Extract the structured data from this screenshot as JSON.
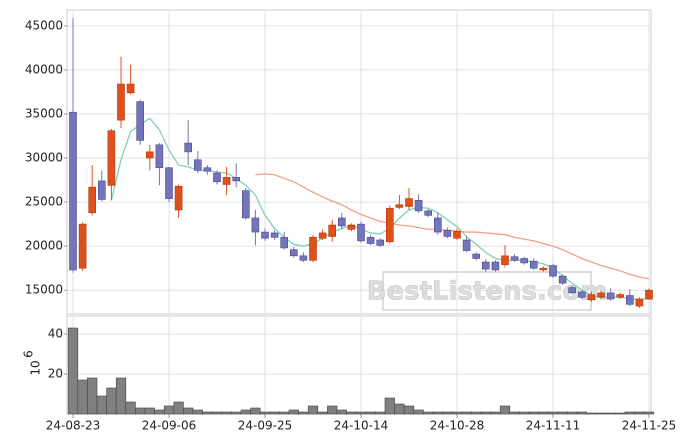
{
  "chart_data": [
    {
      "type": "candlestick",
      "open": [
        35200,
        17500,
        23800,
        27400,
        26900,
        34300,
        37400,
        36400,
        30000,
        31500,
        28900,
        24100,
        31700,
        29800,
        28900,
        28300,
        27000,
        27800,
        26300,
        23200,
        21600,
        21500,
        21000,
        19600,
        18900,
        18400,
        20900,
        21100,
        23200,
        21900,
        22500,
        21000,
        20700,
        20500,
        24400,
        24500,
        25200,
        24000,
        23200,
        21800,
        20900,
        20700,
        19100,
        18200,
        18200,
        17900,
        18800,
        18600,
        18300,
        17300,
        17800,
        16600,
        15300,
        14800,
        13900,
        14200,
        14700,
        14200,
        14400,
        13200,
        14000
      ],
      "high": [
        45900,
        22700,
        29200,
        28600,
        33300,
        41500,
        40600,
        36600,
        31500,
        31700,
        29000,
        27000,
        34300,
        30800,
        29200,
        28600,
        29000,
        29400,
        26600,
        24100,
        22000,
        21800,
        21600,
        19900,
        19300,
        21300,
        21900,
        23000,
        23800,
        22600,
        22800,
        21300,
        20900,
        24600,
        25800,
        26600,
        25900,
        24200,
        23800,
        22100,
        22000,
        21100,
        19300,
        18500,
        18400,
        20100,
        19100,
        18800,
        18600,
        17700,
        18000,
        16800,
        15500,
        15000,
        14800,
        14900,
        15200,
        14700,
        15100,
        14200,
        15200
      ],
      "low": [
        17000,
        17200,
        23500,
        25100,
        25200,
        33400,
        37200,
        31500,
        28600,
        26900,
        25000,
        23200,
        29200,
        28300,
        28100,
        27000,
        25800,
        26700,
        23000,
        20100,
        20600,
        20700,
        19600,
        18700,
        18200,
        18200,
        20700,
        20500,
        21900,
        21700,
        20400,
        20100,
        19900,
        20300,
        24200,
        24100,
        23800,
        23300,
        21300,
        20900,
        20700,
        19300,
        18400,
        17100,
        17100,
        17600,
        18200,
        17900,
        17300,
        17100,
        16400,
        15600,
        14500,
        14000,
        13700,
        14000,
        13800,
        14000,
        13200,
        13000,
        13900
      ],
      "close": [
        17300,
        22500,
        26700,
        25300,
        33100,
        38400,
        38400,
        32000,
        30700,
        28900,
        25400,
        26800,
        30700,
        28600,
        28500,
        27300,
        27800,
        27400,
        23200,
        21600,
        20900,
        21000,
        19800,
        18900,
        18400,
        21000,
        21500,
        22400,
        22300,
        22400,
        20600,
        20300,
        20100,
        24300,
        24700,
        25400,
        24000,
        23500,
        21600,
        21100,
        21700,
        19500,
        18600,
        17400,
        17300,
        18900,
        18400,
        18100,
        17500,
        17500,
        16600,
        15800,
        14700,
        14200,
        14500,
        14700,
        14000,
        14500,
        13400,
        14000,
        15000
      ],
      "up_color": "#e0501c",
      "down_color": "#7474b8",
      "series": [
        {
          "color": "#7fd1b0",
          "values": [
            null,
            null,
            null,
            null,
            25200,
            29800,
            33000,
            33800,
            34500,
            33200,
            30900,
            29200,
            29000,
            28600,
            28600,
            28400,
            28300,
            27700,
            26900,
            25800,
            23500,
            22000,
            21000,
            20200,
            20000,
            20300,
            20900,
            21600,
            22000,
            22400,
            21900,
            21500,
            21400,
            22000,
            23200,
            24100,
            24400,
            24300,
            23800,
            23000,
            22200,
            21100,
            20200,
            19300,
            18600,
            18400,
            18400,
            18400,
            18200,
            18000,
            17500,
            16600,
            15800,
            15000,
            14400,
            14200,
            14200,
            14200,
            14100,
            13900,
            14100
          ]
        },
        {
          "color": "#f0a088",
          "values": [
            null,
            null,
            null,
            null,
            null,
            null,
            null,
            null,
            null,
            null,
            null,
            null,
            null,
            null,
            null,
            null,
            null,
            null,
            null,
            28100,
            28200,
            28100,
            27700,
            27300,
            26700,
            26100,
            25600,
            25100,
            24700,
            24100,
            23600,
            23200,
            22800,
            22600,
            22400,
            22300,
            22100,
            21900,
            21900,
            21800,
            21700,
            21600,
            21600,
            21500,
            21400,
            21300,
            21000,
            20800,
            20600,
            20300,
            20000,
            19600,
            19100,
            18600,
            18200,
            17800,
            17500,
            17200,
            16800,
            16500,
            16300
          ]
        }
      ],
      "ylim": [
        12300,
        46800
      ],
      "yticks": [
        15000,
        20000,
        25000,
        30000,
        35000,
        40000,
        45000
      ],
      "grid": true,
      "watermark": "BestListens.com"
    },
    {
      "type": "bar",
      "categories": [
        "24-08-23",
        null,
        null,
        null,
        null,
        null,
        null,
        null,
        null,
        null,
        "24-09-06",
        null,
        null,
        null,
        null,
        null,
        null,
        null,
        null,
        null,
        "24-09-25",
        null,
        null,
        null,
        null,
        null,
        null,
        null,
        null,
        null,
        "24-10-14",
        null,
        null,
        null,
        null,
        null,
        null,
        null,
        null,
        null,
        "24-10-28",
        null,
        null,
        null,
        null,
        null,
        null,
        null,
        null,
        null,
        "24-11-11",
        null,
        null,
        null,
        null,
        null,
        null,
        null,
        null,
        null,
        "24-11-25"
      ],
      "values": [
        43,
        17,
        18,
        9,
        13,
        18,
        6,
        3,
        3,
        2,
        4,
        6,
        3,
        2,
        1,
        1,
        1,
        1,
        2,
        3,
        1,
        1,
        1,
        2,
        1,
        4,
        1,
        4,
        2,
        1,
        1,
        1,
        1,
        8,
        5,
        4,
        2,
        1,
        1,
        1,
        1,
        1,
        1,
        1,
        1,
        4,
        1,
        1,
        1,
        1,
        1,
        1,
        1,
        1,
        0.5,
        0.5,
        0.5,
        0.5,
        1,
        1,
        1
      ],
      "color": "#808080",
      "ylim": [
        0,
        49
      ],
      "yticks": [
        20,
        40
      ],
      "grid": true,
      "ylabel": "10",
      "ylabel_exponent": "6"
    }
  ]
}
